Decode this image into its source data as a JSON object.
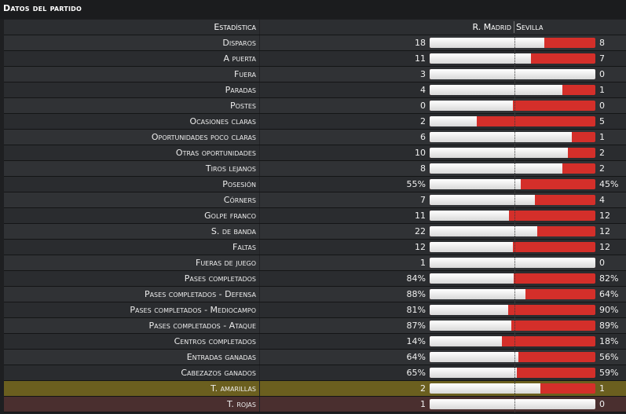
{
  "title": "Datos del partido",
  "header": {
    "label": "Estadística",
    "home_team": "R. Madrid",
    "away_team": "Sevilla"
  },
  "colors": {
    "home_bar": "#ffffff",
    "away_bar": "#d42f2a",
    "yellow_row": "#6b5f1f",
    "red_row": "#4a2f2f"
  },
  "stats": [
    {
      "label": "Disparos",
      "home": "18",
      "away": "8",
      "hv": 18,
      "av": 8
    },
    {
      "label": "A puerta",
      "home": "11",
      "away": "7",
      "hv": 11,
      "av": 7
    },
    {
      "label": "Fuera",
      "home": "3",
      "away": "0",
      "hv": 3,
      "av": 0
    },
    {
      "label": "Paradas",
      "home": "4",
      "away": "1",
      "hv": 4,
      "av": 1
    },
    {
      "label": "Postes",
      "home": "0",
      "away": "0",
      "hv": 0,
      "av": 0
    },
    {
      "label": "Ocasiones claras",
      "home": "2",
      "away": "5",
      "hv": 2,
      "av": 5
    },
    {
      "label": "Oportunidades poco claras",
      "home": "6",
      "away": "1",
      "hv": 6,
      "av": 1
    },
    {
      "label": "Otras oportunidades",
      "home": "10",
      "away": "2",
      "hv": 10,
      "av": 2
    },
    {
      "label": "Tiros lejanos",
      "home": "8",
      "away": "2",
      "hv": 8,
      "av": 2
    },
    {
      "label": "Posesión",
      "home": "55%",
      "away": "45%",
      "hv": 55,
      "av": 45
    },
    {
      "label": "Córners",
      "home": "7",
      "away": "4",
      "hv": 7,
      "av": 4
    },
    {
      "label": "Golpe franco",
      "home": "11",
      "away": "12",
      "hv": 11,
      "av": 12
    },
    {
      "label": "S. de banda",
      "home": "22",
      "away": "12",
      "hv": 22,
      "av": 12
    },
    {
      "label": "Faltas",
      "home": "12",
      "away": "12",
      "hv": 12,
      "av": 12
    },
    {
      "label": "Fueras de juego",
      "home": "1",
      "away": "0",
      "hv": 1,
      "av": 0
    },
    {
      "label": "Pases completados",
      "home": "84%",
      "away": "82%",
      "hv": 84,
      "av": 82
    },
    {
      "label": "Pases completados - Defensa",
      "home": "88%",
      "away": "64%",
      "hv": 88,
      "av": 64
    },
    {
      "label": "Pases completados - Mediocampo",
      "home": "81%",
      "away": "90%",
      "hv": 81,
      "av": 90
    },
    {
      "label": "Pases completados - Ataque",
      "home": "87%",
      "away": "89%",
      "hv": 87,
      "av": 89
    },
    {
      "label": "Centros completados",
      "home": "14%",
      "away": "18%",
      "hv": 14,
      "av": 18
    },
    {
      "label": "Entradas ganadas",
      "home": "64%",
      "away": "56%",
      "hv": 64,
      "av": 56
    },
    {
      "label": "Cabezazos ganados",
      "home": "65%",
      "away": "59%",
      "hv": 65,
      "av": 59
    },
    {
      "label": "T. amarillas",
      "home": "2",
      "away": "1",
      "hv": 2,
      "av": 1,
      "highlight": "yellow"
    },
    {
      "label": "T. rojas",
      "home": "1",
      "away": "0",
      "hv": 1,
      "av": 0,
      "highlight": "red"
    }
  ]
}
